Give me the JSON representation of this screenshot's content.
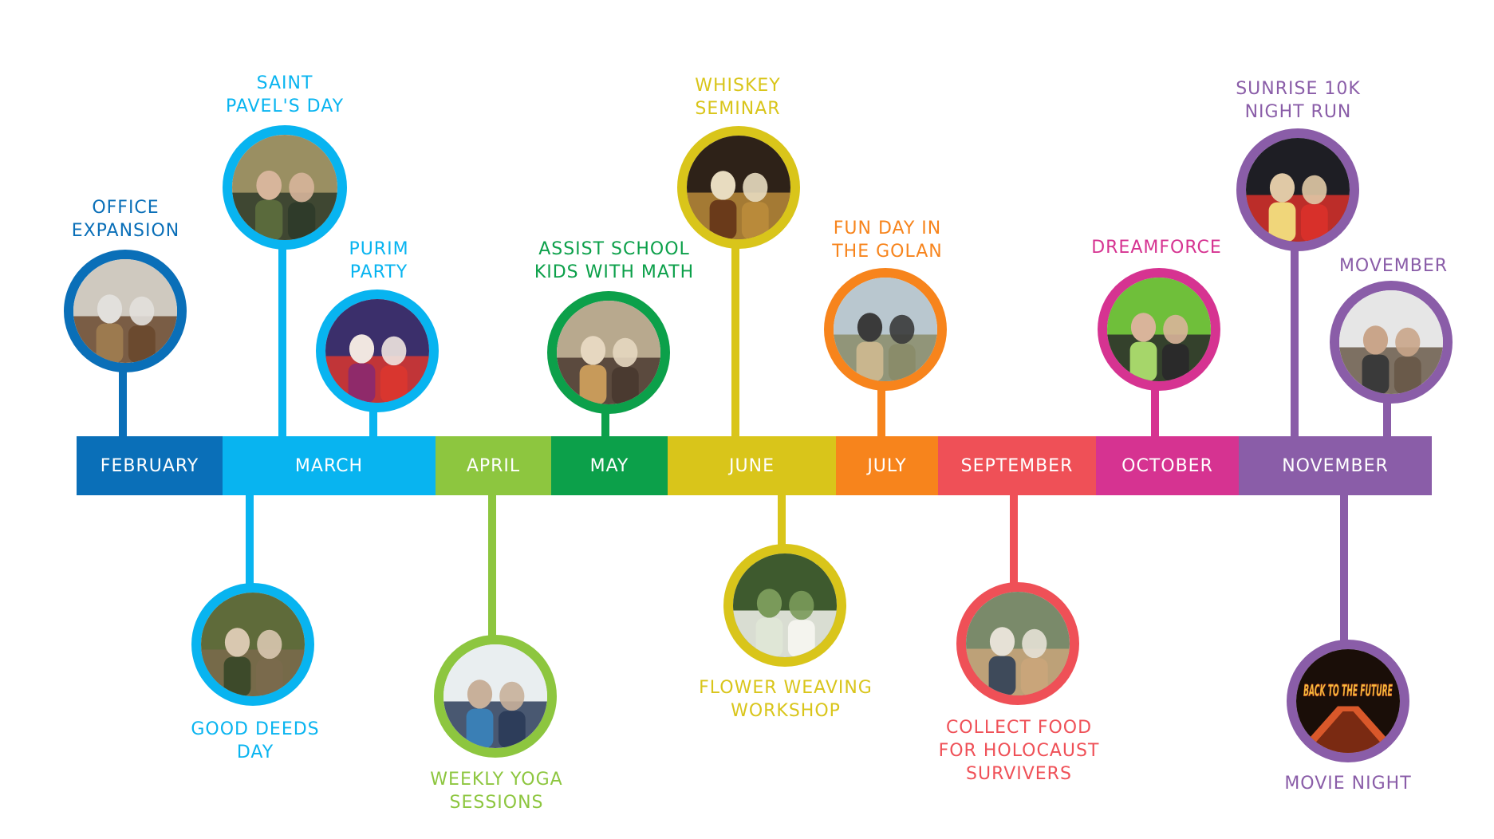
{
  "months": [
    {
      "label": "FEBRUARY",
      "color": "#0a6fb8"
    },
    {
      "label": "MARCH",
      "color": "#08b4f0"
    },
    {
      "label": "APRIL",
      "color": "#8dc63f"
    },
    {
      "label": "MAY",
      "color": "#0ca04a"
    },
    {
      "label": "JUNE",
      "color": "#d9c51a"
    },
    {
      "label": "JULY",
      "color": "#f7841c"
    },
    {
      "label": "SEPTEMBER",
      "color": "#ef5057"
    },
    {
      "label": "OCTOBER",
      "color": "#d63391"
    },
    {
      "label": "NOVEMBER",
      "color": "#8a5da8"
    }
  ],
  "events": [
    {
      "label": "OFFICE\nEXPANSION",
      "month": "FEBRUARY",
      "position": "above",
      "photo": "office-kitchen-photo"
    },
    {
      "label": "SAINT\nPAVEL'S DAY",
      "month": "MARCH",
      "position": "above",
      "photo": "man-in-hat-photo"
    },
    {
      "label": "PURIM\nPARTY",
      "month": "MARCH",
      "position": "above",
      "photo": "casino-party-photo"
    },
    {
      "label": "GOOD DEEDS\nDAY",
      "month": "MARCH",
      "position": "below",
      "photo": "volunteers-outdoors-photo"
    },
    {
      "label": "WEEKLY YOGA\nSESSIONS",
      "month": "APRIL",
      "position": "below",
      "photo": "yoga-class-photo"
    },
    {
      "label": "ASSIST SCHOOL\nKIDS WITH MATH",
      "month": "MAY",
      "position": "above",
      "photo": "kids-at-table-photo"
    },
    {
      "label": "WHISKEY\nSEMINAR",
      "month": "JUNE",
      "position": "above",
      "photo": "whiskey-bottles-photo"
    },
    {
      "label": "FLOWER WEAVING\nWORKSHOP",
      "month": "JUNE",
      "position": "below",
      "photo": "white-flowers-photo"
    },
    {
      "label": "FUN DAY IN\nTHE GOLAN",
      "month": "JULY",
      "position": "above",
      "photo": "group-on-hill-photo"
    },
    {
      "label": "COLLECT FOOD\nFOR HOLOCAUST\nSURVIVERS",
      "month": "SEPTEMBER",
      "position": "below",
      "photo": "food-boxes-photo"
    },
    {
      "label": "DREAMFORCE",
      "month": "OCTOBER",
      "position": "above",
      "photo": "conference-selfie-photo"
    },
    {
      "label": "SUNRISE 10K\nNIGHT RUN",
      "month": "NOVEMBER",
      "position": "above",
      "photo": "night-runners-photo"
    },
    {
      "label": "MOVEMBER",
      "month": "NOVEMBER",
      "position": "above",
      "photo": "mustache-men-photo"
    },
    {
      "label": "MOVIE NIGHT",
      "month": "NOVEMBER",
      "position": "below",
      "photo": "back-to-the-future-poster"
    }
  ],
  "poster_text": "BACK TO THE FUTURE"
}
